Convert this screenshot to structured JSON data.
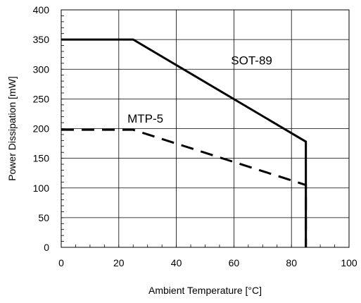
{
  "chart_data": {
    "type": "line",
    "xlabel": "Ambient Temperature [°C]",
    "ylabel": "Power Dissipation [mW]",
    "xlim": [
      0,
      100
    ],
    "ylim": [
      0,
      400
    ],
    "x_ticks": [
      0,
      20,
      40,
      60,
      80,
      100
    ],
    "y_ticks": [
      0,
      50,
      100,
      150,
      200,
      250,
      300,
      350,
      400
    ],
    "x_tick_labels": [
      "0",
      "20",
      "40",
      "60",
      "80",
      "100"
    ],
    "y_tick_labels": [
      "0",
      "50",
      "100",
      "150",
      "200",
      "250",
      "300",
      "350",
      "400"
    ],
    "grid": true,
    "minor_ticks": true,
    "series": [
      {
        "name": "SOT-89",
        "style": "solid",
        "color": "#000000",
        "x": [
          0,
          25,
          85,
          85
        ],
        "y": [
          350,
          350,
          178,
          0
        ]
      },
      {
        "name": "MTP-5",
        "style": "dashed",
        "color": "#000000",
        "x": [
          0,
          25,
          85,
          85
        ],
        "y": [
          198,
          198,
          105,
          0
        ]
      }
    ]
  }
}
